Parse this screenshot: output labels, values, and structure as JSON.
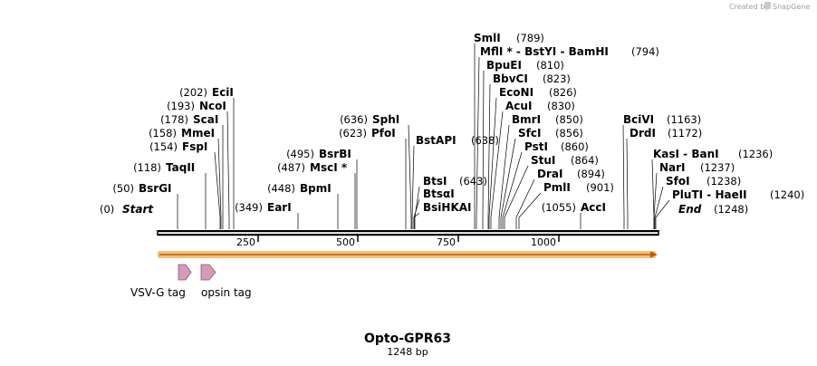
{
  "watermark": {
    "text": "Created by",
    "brand": "SnapGene"
  },
  "map": {
    "name": "Opto-GPR63",
    "length_label": "1248 bp",
    "length_bp": 1248,
    "ticks": [
      "250",
      "500",
      "750",
      "1000"
    ],
    "ends": [
      {
        "label": "Start",
        "pos_text": "(0)"
      },
      {
        "label": "End",
        "pos_text": "(1248)"
      }
    ],
    "sites": [
      {
        "text": "BsrGI",
        "pos": "(50)"
      },
      {
        "text": "TaqII",
        "pos": "(118)"
      },
      {
        "text": "FspI",
        "pos": "(154)"
      },
      {
        "text": "MmeI",
        "pos": "(158)"
      },
      {
        "text": "ScaI",
        "pos": "(178)"
      },
      {
        "text": "NcoI",
        "pos": "(193)"
      },
      {
        "text": "EciI",
        "pos": "(202)"
      },
      {
        "text": "EarI",
        "pos": "(349)"
      },
      {
        "text": "BpmI",
        "pos": "(448)"
      },
      {
        "text": "MscI *",
        "pos": "(487)"
      },
      {
        "text": "BsrBI",
        "pos": "(495)"
      },
      {
        "text": "PfoI",
        "pos": "(623)"
      },
      {
        "text": "SphI",
        "pos": "(636)"
      },
      {
        "text": "BstAPI",
        "pos": "(638)"
      },
      {
        "text": "BsiHKAI",
        "pos": ""
      },
      {
        "text": "BtsαI",
        "pos": ""
      },
      {
        "text": "BtsI",
        "pos": "(643)"
      },
      {
        "text": "SmlI",
        "pos": "(789)"
      },
      {
        "text": "MflI * - BstYI - BamHI",
        "pos": "(794)"
      },
      {
        "text": "BpuEI",
        "pos": "(810)"
      },
      {
        "text": "BbvCI",
        "pos": "(823)"
      },
      {
        "text": "EcoNI",
        "pos": "(826)"
      },
      {
        "text": "AcuI",
        "pos": "(830)"
      },
      {
        "text": "BmrI",
        "pos": "(850)"
      },
      {
        "text": "SfcI",
        "pos": "(856)"
      },
      {
        "text": "PstI",
        "pos": "(860)"
      },
      {
        "text": "StuI",
        "pos": "(864)"
      },
      {
        "text": "DraI",
        "pos": "(894)"
      },
      {
        "text": "PmlI",
        "pos": "(901)"
      },
      {
        "text": "AccI",
        "pos": "(1055)"
      },
      {
        "text": "BciVI",
        "pos": "(1163)"
      },
      {
        "text": "DrdI",
        "pos": "(1172)"
      },
      {
        "text": "KasI - BanI",
        "pos": "(1236)"
      },
      {
        "text": "NarI",
        "pos": "(1237)"
      },
      {
        "text": "SfoI",
        "pos": "(1238)"
      },
      {
        "text": "PluTI - HaeII",
        "pos": "(1240)"
      }
    ],
    "features": [
      {
        "label": "VSV-G tag",
        "color": "#d49ab8"
      },
      {
        "label": "opsin tag",
        "color": "#d49ab8"
      }
    ],
    "colors": {
      "orf_arrow": "#f5c07a",
      "orf_line": "#b55d10",
      "backbone": "#000000"
    }
  }
}
